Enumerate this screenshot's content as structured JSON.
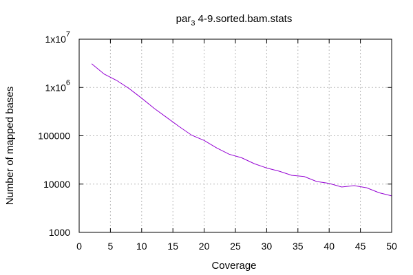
{
  "chart_data": {
    "type": "line",
    "title": "par_3 4-9.sorted.bam.stats",
    "title_parts": {
      "pre": "par",
      "sub": "3",
      "post": " 4-9.sorted.bam.stats"
    },
    "xlabel": "Coverage",
    "ylabel": "Number of mapped bases",
    "x_scale": "linear",
    "y_scale": "log",
    "xlim": [
      0,
      50
    ],
    "ylim": [
      1000,
      10000000
    ],
    "x_ticks": [
      0,
      5,
      10,
      15,
      20,
      25,
      30,
      35,
      40,
      45,
      50
    ],
    "x_tick_labels": [
      "0",
      "5",
      "10",
      "15",
      "20",
      "25",
      "30",
      "35",
      "40",
      "45",
      "50"
    ],
    "y_ticks": [
      1000,
      10000,
      100000,
      1000000,
      10000000
    ],
    "y_tick_labels": [
      {
        "text": "1000"
      },
      {
        "text": "10000"
      },
      {
        "text": "100000"
      },
      {
        "base": "1x10",
        "exp": "6"
      },
      {
        "base": "1x10",
        "exp": "7"
      }
    ],
    "grid": true,
    "series": [
      {
        "color": "#9400d3",
        "x": [
          2,
          4,
          6,
          8,
          10,
          12,
          14,
          16,
          18,
          20,
          22,
          24,
          26,
          28,
          30,
          32,
          34,
          36,
          38,
          40,
          42,
          44,
          46,
          48,
          50
        ],
        "y": [
          3100000,
          1900000,
          1400000,
          950000,
          600000,
          370000,
          240000,
          155000,
          103000,
          80000,
          56000,
          41500,
          35000,
          26500,
          21500,
          18500,
          15200,
          14300,
          11300,
          10300,
          8700,
          9300,
          8400,
          6600,
          5700
        ]
      }
    ]
  }
}
